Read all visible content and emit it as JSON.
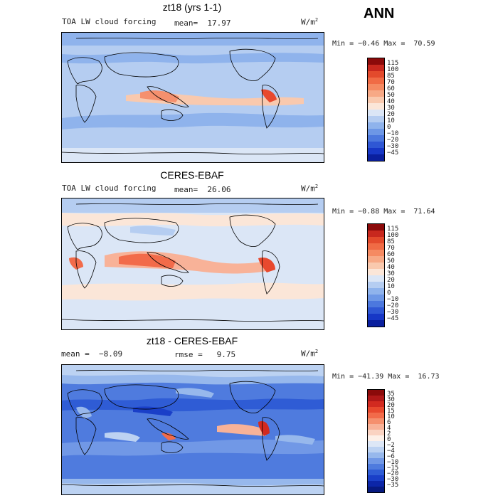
{
  "season": "ANN",
  "units": "W/m",
  "units_sup": "2",
  "panels": [
    {
      "title": "zt18 (yrs 1-1)",
      "left_label": "TOA LW cloud forcing",
      "mean_label": "mean=  17.97",
      "minmax": "Min = −0.46 Max =  70.59",
      "colorbar": {
        "labels": [
          "115",
          "100",
          "85",
          "70",
          "60",
          "50",
          "40",
          "30",
          "20",
          "10",
          "0",
          "−10",
          "−20",
          "−30",
          "−45"
        ],
        "colors": [
          "#8b0a0a",
          "#c8281e",
          "#e34a2c",
          "#f06b45",
          "#f58a62",
          "#f7a986",
          "#f9c9ae",
          "#fbe6d8",
          "#dbe6f6",
          "#b5cdf1",
          "#8fb3ec",
          "#6d97e6",
          "#4c78de",
          "#2f57d4",
          "#1737c6",
          "#0a1f9e"
        ]
      }
    },
    {
      "title": "CERES-EBAF",
      "left_label": "TOA LW cloud forcing",
      "mean_label": "mean=  26.06",
      "minmax": "Min = −0.88 Max =  71.64",
      "colorbar": {
        "labels": [
          "115",
          "100",
          "85",
          "70",
          "60",
          "50",
          "40",
          "30",
          "20",
          "10",
          "0",
          "−10",
          "−20",
          "−30",
          "−45"
        ],
        "colors": [
          "#8b0a0a",
          "#c8281e",
          "#e34a2c",
          "#f06b45",
          "#f58a62",
          "#f7a986",
          "#f9c9ae",
          "#fbe6d8",
          "#dbe6f6",
          "#b5cdf1",
          "#8fb3ec",
          "#6d97e6",
          "#4c78de",
          "#2f57d4",
          "#1737c6",
          "#0a1f9e"
        ]
      }
    },
    {
      "title": "zt18 - CERES-EBAF",
      "left_label": "mean =  −8.09",
      "mean_label": "rmse =   9.75",
      "minmax": "Min = −41.39 Max =  16.73",
      "colorbar": {
        "labels": [
          "35",
          "30",
          "20",
          "15",
          "10",
          "6",
          "4",
          "2",
          "0",
          "−2",
          "−4",
          "−6",
          "−10",
          "−15",
          "−20",
          "−30",
          "−35"
        ],
        "colors": [
          "#8b0a0a",
          "#b01818",
          "#d22a20",
          "#e8492e",
          "#f26b4a",
          "#f5906e",
          "#f8b298",
          "#fad3c2",
          "#fdf0e8",
          "#dde7f6",
          "#bcd2f2",
          "#97b8ec",
          "#7198e6",
          "#4f7bde",
          "#2f5cd5",
          "#1a3fc8",
          "#0c26a8",
          "#071a80"
        ]
      }
    }
  ]
}
